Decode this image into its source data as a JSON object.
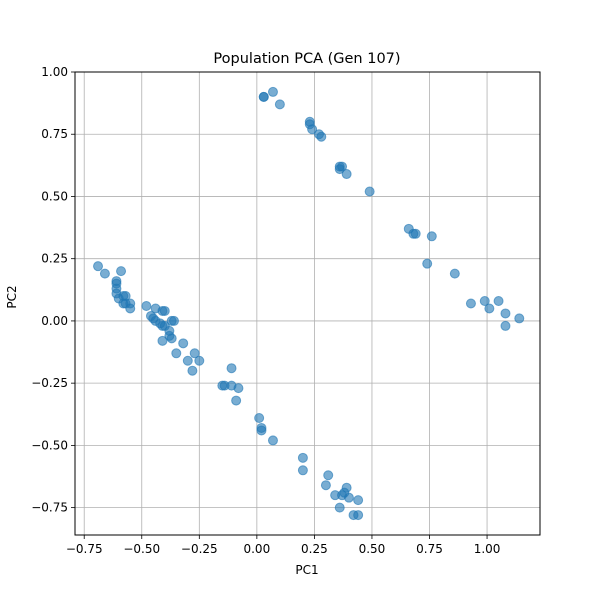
{
  "chart_data": {
    "type": "scatter",
    "title": "Population PCA (Gen 107)",
    "xlabel": "PC1",
    "ylabel": "PC2",
    "xlim": [
      -0.79,
      1.23
    ],
    "ylim": [
      -0.86,
      1.0
    ],
    "xticks": [
      -0.75,
      -0.5,
      -0.25,
      0.0,
      0.25,
      0.5,
      0.75,
      1.0
    ],
    "xtick_labels": [
      "−0.75",
      "−0.50",
      "−0.25",
      "0.00",
      "0.25",
      "0.50",
      "0.75",
      "1.00"
    ],
    "yticks": [
      -0.75,
      -0.5,
      -0.25,
      0.0,
      0.25,
      0.5,
      0.75,
      1.0
    ],
    "ytick_labels": [
      "−0.75",
      "−0.50",
      "−0.25",
      "0.00",
      "0.25",
      "0.50",
      "0.75",
      "1.00"
    ],
    "grid": true,
    "point_color": "#1f77b4",
    "points": [
      [
        0.03,
        0.9
      ],
      [
        0.03,
        0.9
      ],
      [
        0.07,
        0.92
      ],
      [
        0.1,
        0.87
      ],
      [
        0.23,
        0.8
      ],
      [
        0.23,
        0.79
      ],
      [
        0.24,
        0.77
      ],
      [
        0.27,
        0.75
      ],
      [
        0.28,
        0.74
      ],
      [
        0.36,
        0.62
      ],
      [
        0.36,
        0.61
      ],
      [
        0.37,
        0.62
      ],
      [
        0.39,
        0.59
      ],
      [
        0.49,
        0.52
      ],
      [
        0.66,
        0.37
      ],
      [
        0.68,
        0.35
      ],
      [
        0.69,
        0.35
      ],
      [
        0.76,
        0.34
      ],
      [
        0.74,
        0.23
      ],
      [
        0.86,
        0.19
      ],
      [
        0.93,
        0.07
      ],
      [
        0.99,
        0.08
      ],
      [
        1.01,
        0.05
      ],
      [
        1.05,
        0.08
      ],
      [
        1.08,
        0.03
      ],
      [
        1.08,
        -0.02
      ],
      [
        1.14,
        0.01
      ],
      [
        -0.69,
        0.22
      ],
      [
        -0.66,
        0.19
      ],
      [
        -0.59,
        0.2
      ],
      [
        -0.61,
        0.16
      ],
      [
        -0.61,
        0.15
      ],
      [
        -0.61,
        0.13
      ],
      [
        -0.61,
        0.11
      ],
      [
        -0.58,
        0.1
      ],
      [
        -0.57,
        0.1
      ],
      [
        -0.6,
        0.09
      ],
      [
        -0.57,
        0.07
      ],
      [
        -0.55,
        0.07
      ],
      [
        -0.55,
        0.05
      ],
      [
        -0.58,
        0.07
      ],
      [
        -0.48,
        0.06
      ],
      [
        -0.44,
        0.05
      ],
      [
        -0.41,
        0.04
      ],
      [
        -0.4,
        0.04
      ],
      [
        -0.46,
        0.02
      ],
      [
        -0.45,
        0.01
      ],
      [
        -0.44,
        0.0
      ],
      [
        -0.42,
        -0.01
      ],
      [
        -0.41,
        -0.02
      ],
      [
        -0.4,
        -0.02
      ],
      [
        -0.37,
        0.0
      ],
      [
        -0.36,
        0.0
      ],
      [
        -0.38,
        -0.04
      ],
      [
        -0.38,
        -0.06
      ],
      [
        -0.37,
        -0.07
      ],
      [
        -0.41,
        -0.08
      ],
      [
        -0.32,
        -0.09
      ],
      [
        -0.35,
        -0.13
      ],
      [
        -0.3,
        -0.16
      ],
      [
        -0.27,
        -0.13
      ],
      [
        -0.25,
        -0.16
      ],
      [
        -0.28,
        -0.2
      ],
      [
        -0.11,
        -0.19
      ],
      [
        -0.15,
        -0.26
      ],
      [
        -0.14,
        -0.26
      ],
      [
        -0.11,
        -0.26
      ],
      [
        -0.08,
        -0.27
      ],
      [
        -0.09,
        -0.32
      ],
      [
        0.01,
        -0.39
      ],
      [
        0.02,
        -0.43
      ],
      [
        0.02,
        -0.44
      ],
      [
        0.07,
        -0.48
      ],
      [
        0.2,
        -0.55
      ],
      [
        0.2,
        -0.6
      ],
      [
        0.31,
        -0.62
      ],
      [
        0.3,
        -0.66
      ],
      [
        0.34,
        -0.7
      ],
      [
        0.37,
        -0.7
      ],
      [
        0.39,
        -0.67
      ],
      [
        0.38,
        -0.69
      ],
      [
        0.4,
        -0.71
      ],
      [
        0.44,
        -0.72
      ],
      [
        0.36,
        -0.75
      ],
      [
        0.42,
        -0.78
      ],
      [
        0.44,
        -0.78
      ]
    ]
  }
}
